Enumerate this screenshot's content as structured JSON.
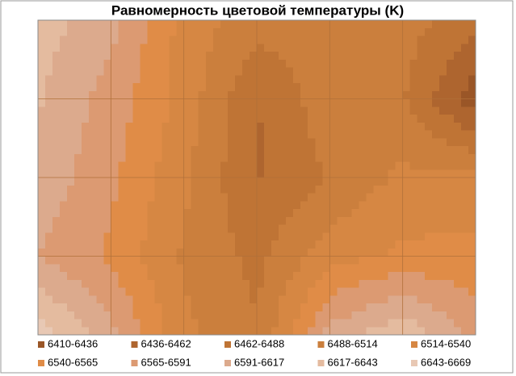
{
  "chart_data": {
    "type": "contour",
    "title": "Равномерность цветовой температуры (K)",
    "levels": [
      {
        "name": "6410-6436",
        "color": "#9a5627"
      },
      {
        "name": "6436-6462",
        "color": "#ae652f"
      },
      {
        "name": "6462-6488",
        "color": "#bf7435"
      },
      {
        "name": "6488-6514",
        "color": "#cb7f3d"
      },
      {
        "name": "6514-6540",
        "color": "#d68743"
      },
      {
        "name": "6540-6565",
        "color": "#e08c47"
      },
      {
        "name": "6565-6591",
        "color": "#dc9a72"
      },
      {
        "name": "6591-6617",
        "color": "#dcaa8d"
      },
      {
        "name": "6617-6643",
        "color": "#e4bb9f"
      },
      {
        "name": "6643-6669",
        "color": "#e8c8b4"
      }
    ],
    "z": [
      [
        6630,
        6600,
        6530,
        6500,
        6505,
        6500,
        6470
      ],
      [
        6620,
        6580,
        6530,
        6460,
        6505,
        6490,
        6420
      ],
      [
        6610,
        6570,
        6520,
        6460,
        6490,
        6520,
        6520
      ],
      [
        6590,
        6560,
        6510,
        6480,
        6530,
        6545,
        6550
      ],
      [
        6660,
        6600,
        6520,
        6490,
        6600,
        6640,
        6580
      ]
    ]
  }
}
